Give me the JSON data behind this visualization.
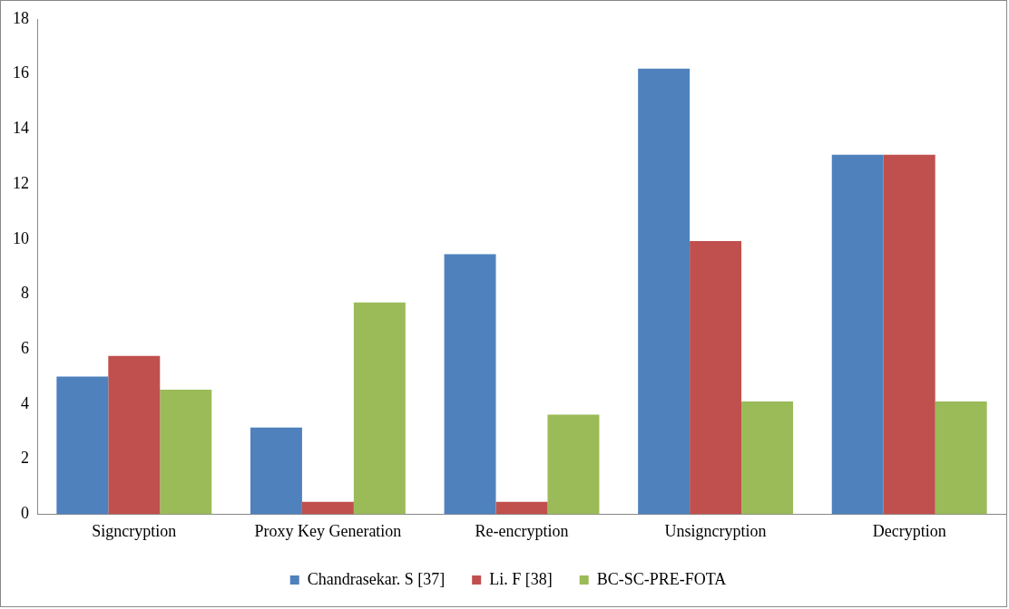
{
  "chart_data": {
    "type": "bar",
    "categories": [
      "Signcryption",
      "Proxy Key Generation",
      "Re-encryption",
      "Unsigncryption",
      "Decryption"
    ],
    "series": [
      {
        "name": "Chandrasekar. S [37]",
        "color": "#4f81bd",
        "values": [
          5.0,
          3.15,
          9.45,
          16.2,
          13.07
        ]
      },
      {
        "name": "Li. F [38]",
        "color": "#c0504d",
        "values": [
          5.75,
          0.45,
          0.45,
          9.93,
          13.07
        ]
      },
      {
        "name": "BC-SC-PRE-FOTA",
        "color": "#9bbb59",
        "values": [
          4.53,
          7.7,
          3.62,
          4.1,
          4.1
        ]
      }
    ],
    "ylim": [
      0,
      18
    ],
    "yticks": [
      0,
      2,
      4,
      6,
      8,
      10,
      12,
      14,
      16,
      18
    ],
    "grid": false,
    "legend": "bottom"
  }
}
